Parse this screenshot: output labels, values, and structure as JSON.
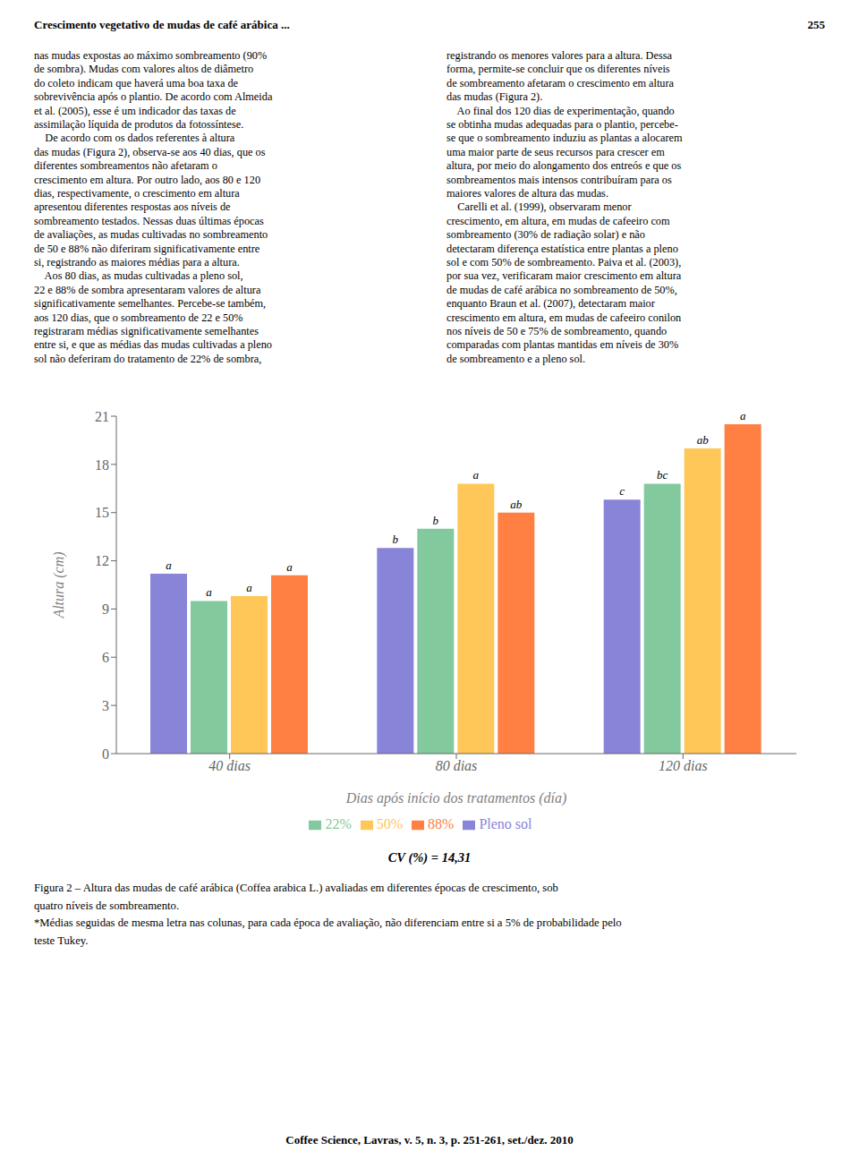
{
  "chart_data": {
    "type": "bar",
    "categories": [
      "40 dias",
      "80 dias",
      "120 dias"
    ],
    "series": [
      {
        "name": "Pleno sol",
        "color": "#8884d8",
        "values": [
          11.2,
          12.8,
          15.8
        ],
        "value_labels": [
          "a",
          "b",
          "c"
        ]
      },
      {
        "name": "22%",
        "color": "#82ca9d",
        "values": [
          9.5,
          14.0,
          16.8
        ],
        "value_labels": [
          "a",
          "b",
          "bc"
        ]
      },
      {
        "name": "50%",
        "color": "#ffc658",
        "values": [
          9.8,
          16.8,
          19.0
        ],
        "value_labels": [
          "a",
          "a",
          "ab"
        ]
      },
      {
        "name": "88%",
        "color": "#ff8042",
        "values": [
          11.1,
          15.0,
          20.5
        ],
        "value_labels": [
          "a",
          "ab",
          "a"
        ]
      }
    ],
    "xlabel": "Dias após início dos tratamentos (día)",
    "ylabel": "Altura (cm)",
    "ylim": [
      0,
      21
    ],
    "yticks": [
      0,
      3,
      6,
      9,
      12,
      15,
      18,
      21
    ],
    "grid": false,
    "legend": "bottom",
    "annotations": [
      [
        "Crescimento vegetativo de mudas de café arábica ...",
        "255"
      ],
      [
        "nas mudas expostas ao máximo sombreamento (90%",
        "de sombra). Mudas com valores altos de diâmetro",
        "do coleto indicam que haverá uma boa taxa de",
        "sobrevivência após o plantio. De acordo com Almeida",
        "et al. (2005), esse é um indicador das taxas de",
        "assimilação líquida de produtos da fotossíntese.",
        "    De acordo com os dados referentes à altura",
        "das mudas (Figura 2), observa-se aos 40 dias, que os",
        "diferentes sombreamentos não afetaram o",
        "crescimento em altura. Por outro lado, aos 80 e 120",
        "dias, respectivamente, o crescimento em altura",
        "apresentou diferentes respostas aos níveis de",
        "sombreamento testados. Nessas duas últimas épocas",
        "de avaliações, as mudas cultivadas no sombreamento",
        "de 50 e 88% não diferiram significativamente entre",
        "si, registrando as maiores médias para a altura.",
        "    Aos 80 dias, as mudas cultivadas a pleno sol,",
        "22 e 88% de sombra apresentaram valores de altura",
        "significativamente semelhantes. Percebe-se também,",
        "aos 120 dias, que o sombreamento de 22 e 50%",
        "registraram médias significativamente semelhantes",
        "entre si, e que as médias das mudas cultivadas a pleno",
        "sol não deferiram do tratamento de 22% de sombra,"
      ],
      [
        "registrando os menores valores para a altura. Dessa",
        "forma, permite-se concluir que os diferentes níveis",
        "de sombreamento afetaram o crescimento em altura",
        "das mudas (Figura 2).",
        "    Ao final dos 120 dias de experimentação, quando",
        "se obtinha mudas adequadas para o plantio, percebe-",
        "se que o sombreamento induziu as plantas a alocarem",
        "uma maior parte de seus recursos para crescer em",
        "altura, por meio do alongamento dos entreós e que os",
        "sombreamentos mais intensos contribuíram para os",
        "maiores valores de altura das mudas.",
        "    Carelli et al. (1999), observaram menor",
        "crescimento, em altura, em mudas de cafeeiro com",
        "sombreamento (30% de radiação solar) e não",
        "detectaram diferença estatística entre plantas a pleno",
        "sol e com 50% de sombreamento. Paiva et al. (2003),",
        "por sua vez, verificaram maior crescimento em altura",
        "de mudas de café arábica no sombreamento de 50%,",
        "enquanto Braun et al. (2007), detectaram maior",
        "crescimento em altura, em mudas de cafeeiro conilon",
        "nos níveis de 50 e 75% de sombreamento, quando",
        "comparadas com plantas mantidas em níveis de 30%",
        "de sombreamento e a pleno sol."
      ],
      [
        "CV (%) = 14,31"
      ],
      [
        "Figura 2 – Altura das mudas de café arábica (Coffea arabica L.) avaliadas em diferentes épocas de crescimento, sob",
        "quatro níveis de sombreamento.",
        "*Médias seguidas de mesma letra nas colunas, para cada época de avaliação, não diferenciam entre si a 5% de probabilidade pelo",
        "teste Tukey."
      ],
      [
        "Coffee Science, Lavras, v. 5, n. 3, p. 251-261, set./dez. 2010"
      ]
    ]
  }
}
